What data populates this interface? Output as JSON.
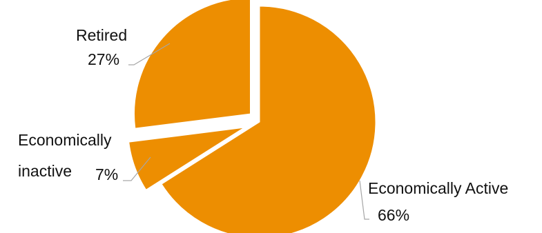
{
  "chart_data": {
    "type": "pie",
    "title": "",
    "exploded": true,
    "colors": {
      "slice": "#ED8E01",
      "slice_border": "#ffffff",
      "leader_line": "#a6a6a6",
      "text": "#111111"
    },
    "slices": [
      {
        "category_lines": [
          "Economically Active"
        ],
        "percent_label": "66%",
        "value": 66
      },
      {
        "category_lines": [
          "Economically",
          "inactive"
        ],
        "percent_label": "7%",
        "value": 7
      },
      {
        "category_lines": [
          "Retired"
        ],
        "percent_label": "27%",
        "value": 27
      }
    ]
  }
}
